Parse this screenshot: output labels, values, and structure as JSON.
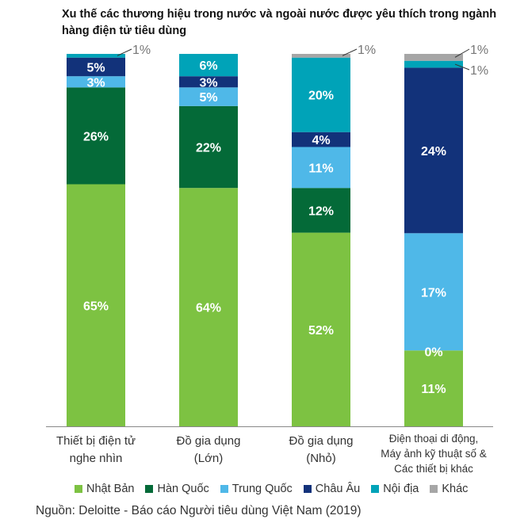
{
  "chart_data": {
    "type": "bar",
    "stacked": true,
    "normalized": true,
    "title": "Xu thế các thương hiệu trong nước và ngoài nước được yêu thích trong ngành hàng điện tử tiêu dùng",
    "categories": [
      [
        "Thiết bị điện tử",
        "nghe nhìn"
      ],
      [
        "Đồ gia dụng",
        "(Lớn)"
      ],
      [
        "Đồ gia dụng",
        "(Nhỏ)"
      ],
      [
        "Điện thoại di động,",
        "Máy ảnh kỹ thuật số &",
        "Các thiết bị khác"
      ]
    ],
    "series": [
      {
        "name": "Nhật Bản",
        "color": "#7dc242",
        "values": [
          65,
          64,
          52,
          11
        ]
      },
      {
        "name": "Hàn Quốc",
        "color": "#046a38",
        "values": [
          26,
          22,
          12,
          0
        ]
      },
      {
        "name": "Trung Quốc",
        "color": "#4fb8e8",
        "values": [
          3,
          5,
          11,
          17
        ]
      },
      {
        "name": "Châu Âu",
        "color": "#12327a",
        "values": [
          5,
          3,
          4,
          24
        ]
      },
      {
        "name": "Nội địa",
        "color": "#00a3b8",
        "values": [
          1,
          6,
          20,
          1
        ]
      },
      {
        "name": "Khác",
        "color": "#a6a6a6",
        "values": [
          0,
          0,
          1,
          1
        ]
      }
    ],
    "value_suffix": "%",
    "legend_position": "bottom",
    "xlabel": "",
    "ylabel": "",
    "grid": false
  },
  "source": "Nguồn: Deloitte - Báo cáo Người tiêu dùng Việt Nam (2019)"
}
